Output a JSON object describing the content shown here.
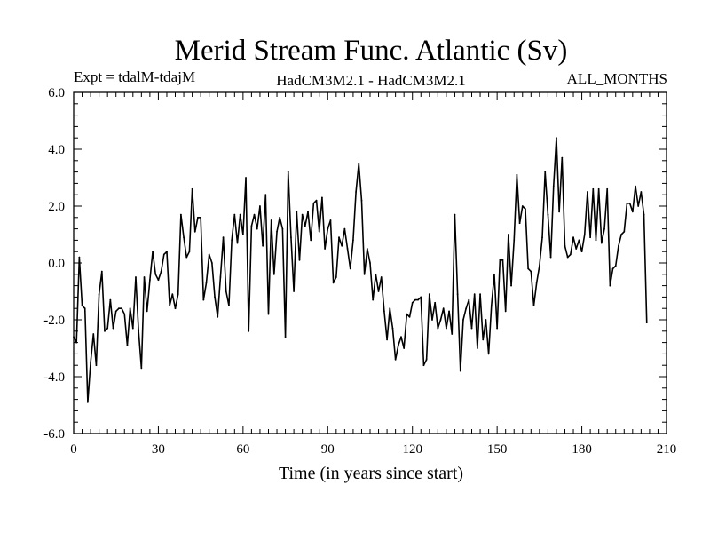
{
  "chart_data": {
    "type": "line",
    "title": "Merid Stream Func. Atlantic (Sv)",
    "subtitle_left": "Expt = tdalM-tdajM",
    "subtitle_center": "HadCM3M2.1 - HadCM3M2.1",
    "subtitle_right": "ALL_MONTHS",
    "xlabel": "Time (in years since start)",
    "ylabel": "",
    "xlim": [
      0,
      210
    ],
    "ylim": [
      -6.0,
      6.0
    ],
    "x_ticks": [
      0,
      30,
      60,
      90,
      120,
      150,
      180,
      210
    ],
    "x_tick_labels": [
      "0",
      "30",
      "60",
      "90",
      "120",
      "150",
      "180",
      "210"
    ],
    "y_ticks": [
      -6.0,
      -4.0,
      -2.0,
      0.0,
      2.0,
      4.0,
      6.0
    ],
    "y_tick_labels": [
      "-6.0",
      "-4.0",
      "-2.0",
      "0.0",
      "2.0",
      "4.0",
      "6.0"
    ],
    "series": [
      {
        "name": "tdalM-tdajM",
        "x_start": 0,
        "x_step": 1,
        "values": [
          -2.6,
          -2.8,
          0.2,
          -1.5,
          -1.6,
          -4.9,
          -3.5,
          -2.5,
          -3.6,
          -1.1,
          -0.3,
          -2.4,
          -2.3,
          -1.3,
          -2.3,
          -1.7,
          -1.6,
          -1.6,
          -1.8,
          -2.9,
          -1.6,
          -2.3,
          -0.5,
          -2.4,
          -3.7,
          -0.5,
          -1.7,
          -0.6,
          0.4,
          -0.4,
          -0.6,
          -0.3,
          0.3,
          0.4,
          -1.5,
          -1.1,
          -1.6,
          -1.1,
          1.7,
          0.9,
          0.2,
          0.4,
          2.6,
          1.1,
          1.6,
          1.6,
          -1.3,
          -0.7,
          0.3,
          0.0,
          -1.2,
          -1.9,
          -0.5,
          0.9,
          -1.0,
          -1.5,
          0.8,
          1.7,
          0.7,
          1.7,
          1.0,
          3.0,
          -2.4,
          1.3,
          1.7,
          1.2,
          2.0,
          0.6,
          2.4,
          -1.8,
          1.5,
          -0.4,
          1.1,
          1.6,
          1.2,
          -2.6,
          3.2,
          0.9,
          -1.0,
          1.8,
          0.1,
          1.7,
          1.3,
          1.8,
          0.8,
          2.1,
          2.2,
          1.1,
          2.3,
          0.5,
          1.2,
          1.5,
          -0.7,
          -0.5,
          0.9,
          0.6,
          1.2,
          0.5,
          -0.2,
          0.8,
          2.5,
          3.5,
          2.2,
          -0.4,
          0.5,
          0.0,
          -1.3,
          -0.4,
          -1.0,
          -0.5,
          -1.7,
          -2.7,
          -1.6,
          -2.3,
          -3.4,
          -2.9,
          -2.6,
          -3.0,
          -1.8,
          -1.9,
          -1.4,
          -1.3,
          -1.3,
          -1.2,
          -3.6,
          -3.4,
          -1.1,
          -2.0,
          -1.4,
          -2.3,
          -2.0,
          -1.6,
          -2.3,
          -1.7,
          -2.5,
          1.7,
          -1.1,
          -3.8,
          -2.0,
          -1.6,
          -1.3,
          -2.3,
          -1.1,
          -3.0,
          -1.1,
          -2.7,
          -2.0,
          -3.2,
          -1.5,
          -0.4,
          -2.3,
          0.1,
          0.1,
          -1.7,
          1.0,
          -0.8,
          0.8,
          3.1,
          1.4,
          2.0,
          1.9,
          -0.2,
          -0.3,
          -1.5,
          -0.7,
          -0.1,
          0.9,
          3.2,
          1.7,
          0.2,
          2.7,
          4.4,
          1.8,
          3.7,
          0.6,
          0.2,
          0.3,
          0.9,
          0.5,
          0.8,
          0.4,
          1.0,
          2.5,
          0.9,
          2.6,
          0.8,
          2.6,
          0.7,
          1.2,
          2.6,
          -0.8,
          -0.2,
          -0.1,
          0.6,
          1.0,
          1.1,
          2.1,
          2.1,
          1.8,
          2.7,
          2.0,
          2.5,
          1.7,
          -2.1
        ]
      }
    ]
  }
}
